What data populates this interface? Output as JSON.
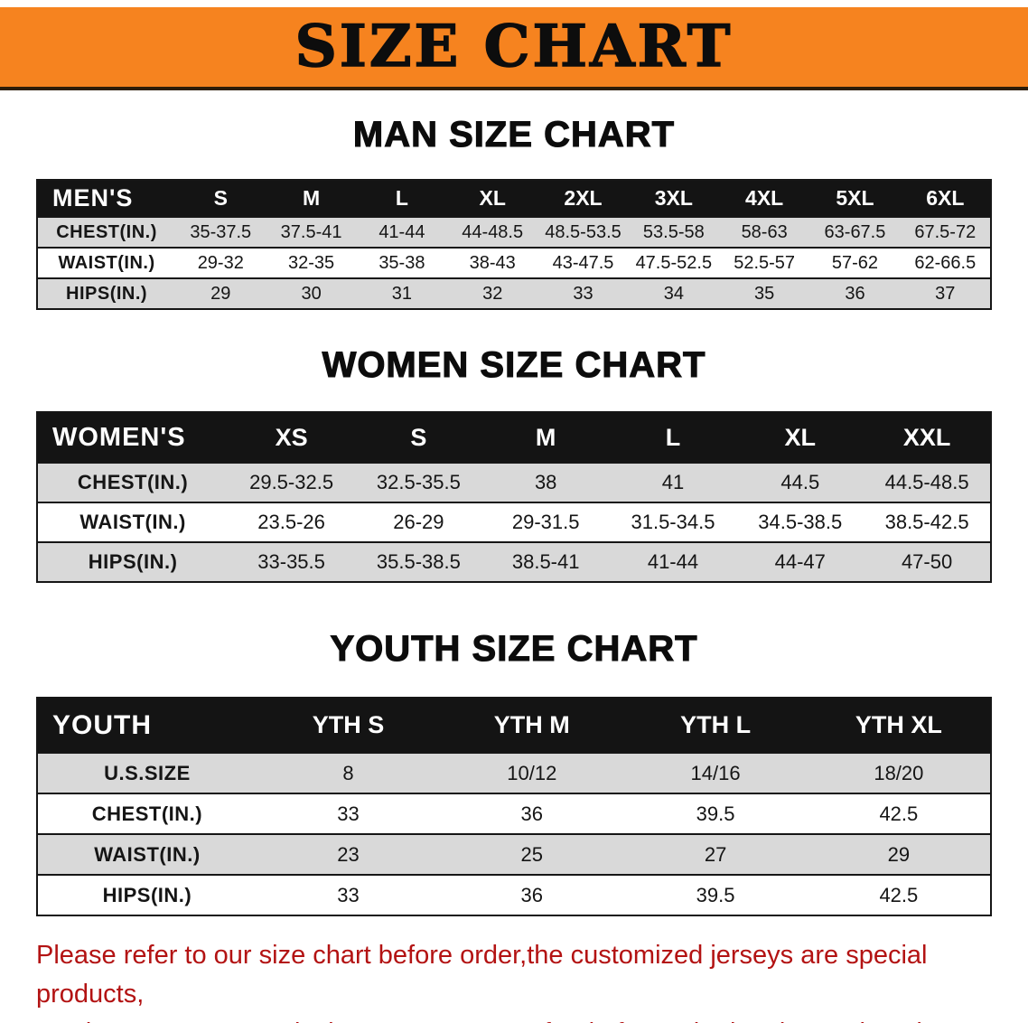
{
  "banner": {
    "title": "SIZE CHART",
    "background_color": "#f6831f"
  },
  "sections": {
    "men": {
      "title": "MAN SIZE CHART",
      "table": {
        "header": [
          "MEN'S",
          "S",
          "M",
          "L",
          "XL",
          "2XL",
          "3XL",
          "4XL",
          "5XL",
          "6XL"
        ],
        "rows": [
          [
            "CHEST(IN.)",
            "35-37.5",
            "37.5-41",
            "41-44",
            "44-48.5",
            "48.5-53.5",
            "53.5-58",
            "58-63",
            "63-67.5",
            "67.5-72"
          ],
          [
            "WAIST(IN.)",
            "29-32",
            "32-35",
            "35-38",
            "38-43",
            "43-47.5",
            "47.5-52.5",
            "52.5-57",
            "57-62",
            "62-66.5"
          ],
          [
            "HIPS(IN.)",
            "29",
            "30",
            "31",
            "32",
            "33",
            "34",
            "35",
            "36",
            "37"
          ]
        ]
      }
    },
    "women": {
      "title": "WOMEN SIZE CHART",
      "table": {
        "header": [
          "WOMEN'S",
          "XS",
          "S",
          "M",
          "L",
          "XL",
          "XXL"
        ],
        "rows": [
          [
            "CHEST(IN.)",
            "29.5-32.5",
            "32.5-35.5",
            "38",
            "41",
            "44.5",
            "44.5-48.5"
          ],
          [
            "WAIST(IN.)",
            "23.5-26",
            "26-29",
            "29-31.5",
            "31.5-34.5",
            "34.5-38.5",
            "38.5-42.5"
          ],
          [
            "HIPS(IN.)",
            "33-35.5",
            "35.5-38.5",
            "38.5-41",
            "41-44",
            "44-47",
            "47-50"
          ]
        ]
      }
    },
    "youth": {
      "title": "YOUTH SIZE CHART",
      "table": {
        "header": [
          "YOUTH",
          "YTH S",
          "YTH M",
          "YTH L",
          "YTH XL"
        ],
        "rows": [
          [
            "U.S.SIZE",
            "8",
            "10/12",
            "14/16",
            "18/20"
          ],
          [
            "CHEST(IN.)",
            "33",
            "36",
            "39.5",
            "42.5"
          ],
          [
            "WAIST(IN.)",
            "23",
            "25",
            "27",
            "29"
          ],
          [
            "HIPS(IN.)",
            "33",
            "36",
            "39.5",
            "42.5"
          ]
        ]
      }
    }
  },
  "footer": {
    "line1": "Please refer to our size chart before order,the customized jerseys are special products,",
    "line2": "we don't accept cancel, change, teturn or refund after order has been placed!",
    "text_color": "#b31313"
  },
  "colors": {
    "banner_orange": "#f6831f",
    "header_black": "#141414",
    "stripe_gray": "#d9d9d9",
    "disclaimer_red": "#b31313"
  }
}
